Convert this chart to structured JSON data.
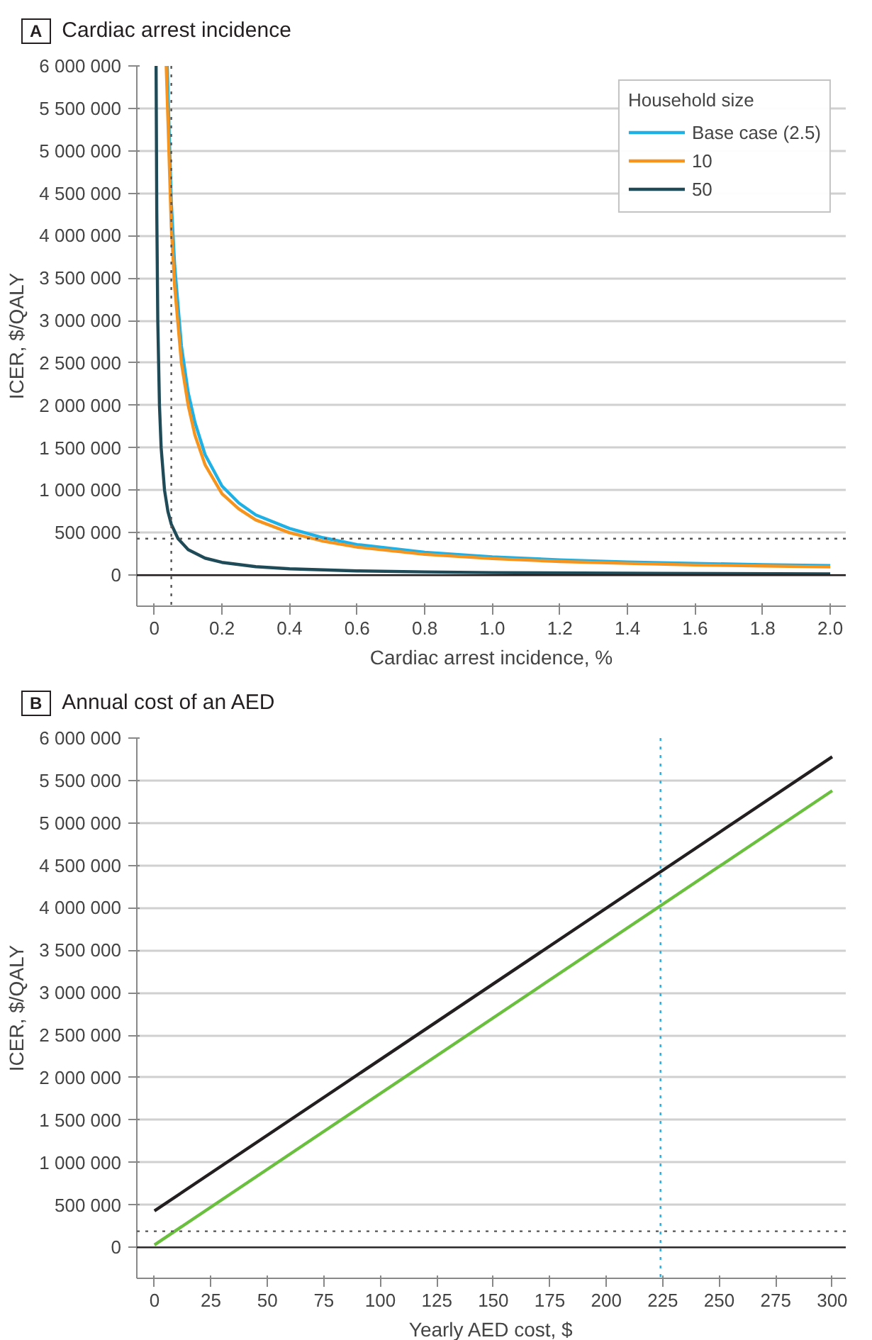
{
  "chart_data": [
    {
      "type": "line",
      "title": "Cardiac arrest incidence",
      "annotations": [
        "A"
      ],
      "xlabel": "Cardiac arrest incidence, %",
      "ylabel": "ICER, $/QALY",
      "legend_title": "Household size",
      "legend": "top right",
      "grid": "y",
      "line_style": "solid",
      "xlim": [
        -0.052,
        2.046
      ],
      "ylim": [
        -366000,
        6000000
      ],
      "xticks": [
        0,
        0.2,
        0.4,
        0.6,
        0.8,
        {
          "value": 1,
          "label": "1.0"
        },
        1.2,
        1.4,
        1.6,
        1.8,
        {
          "value": 2,
          "label": "2.0"
        }
      ],
      "yticks": [
        0,
        {
          "value": 500000,
          "label": "500 000"
        },
        {
          "value": 1000000,
          "label": "1 000 000"
        },
        {
          "value": 1500000,
          "label": "1 500 000"
        },
        {
          "value": 2000000,
          "label": "2 000 000"
        },
        {
          "value": 2500000,
          "label": "2 500 000"
        },
        {
          "value": 3000000,
          "label": "3 000 000"
        },
        {
          "value": 3500000,
          "label": "3 500 000"
        },
        {
          "value": 4000000,
          "label": "4 000 000"
        },
        {
          "value": 4500000,
          "label": "4 500 000"
        },
        {
          "value": 5000000,
          "label": "5 000 000"
        },
        {
          "value": 5500000,
          "label": "5 500 000"
        },
        {
          "value": 6000000,
          "label": "6 000 000"
        }
      ],
      "ref_lines": [
        {
          "axis": "y",
          "value": 0,
          "color": "#231f20",
          "line_style": "solid"
        },
        {
          "axis": "y",
          "value": 430000,
          "color": "#555555",
          "line_style": "dotted"
        },
        {
          "axis": "x",
          "value": 0.05,
          "color": "#555555",
          "line_style": "dotted"
        }
      ],
      "series": [
        {
          "name": "Base case (2.5)",
          "color": "#1fb0e6",
          "x": [
            0.038,
            0.05,
            0.06,
            0.08,
            0.1,
            0.12,
            0.15,
            0.2,
            0.25,
            0.3,
            0.4,
            0.5,
            0.6,
            0.8,
            1.0,
            1.2,
            1.4,
            1.6,
            1.8,
            2.0
          ],
          "values": [
            6000000,
            4400000,
            3650000,
            2700000,
            2150000,
            1800000,
            1420000,
            1050000,
            850000,
            710000,
            550000,
            440000,
            360000,
            270000,
            215000,
            180000,
            155000,
            138000,
            124000,
            113000
          ]
        },
        {
          "name": "10",
          "color": "#f7941d",
          "x": [
            0.035,
            0.05,
            0.06,
            0.08,
            0.1,
            0.12,
            0.15,
            0.2,
            0.25,
            0.3,
            0.4,
            0.5,
            0.6,
            0.8,
            1.0,
            1.2,
            1.4,
            1.6,
            1.8,
            2.0
          ],
          "values": [
            6000000,
            4100000,
            3400000,
            2500000,
            2000000,
            1650000,
            1300000,
            960000,
            780000,
            650000,
            500000,
            400000,
            330000,
            245000,
            195000,
            160000,
            138000,
            120000,
            108000,
            97000
          ]
        },
        {
          "name": "50",
          "color": "#1f4a57",
          "x": [
            0.005,
            0.007,
            0.01,
            0.015,
            0.02,
            0.03,
            0.04,
            0.05,
            0.07,
            0.1,
            0.15,
            0.2,
            0.3,
            0.4,
            0.6,
            0.8,
            1.0,
            1.5,
            2.0
          ],
          "values": [
            6000000,
            4300000,
            3000000,
            2000000,
            1500000,
            1000000,
            750000,
            600000,
            430000,
            300000,
            200000,
            150000,
            100000,
            75000,
            50000,
            38000,
            30000,
            20000,
            15000
          ]
        }
      ]
    },
    {
      "type": "line",
      "title": "Annual cost of an AED",
      "annotations": [
        "B"
      ],
      "xlabel": "Yearly AED cost, $",
      "ylabel": "ICER, $/QALY",
      "grid": "y",
      "line_style": "solid",
      "xlim": [
        -7.8,
        306
      ],
      "ylim": [
        -364000,
        6000000
      ],
      "xticks": [
        0,
        25,
        50,
        75,
        100,
        125,
        150,
        175,
        200,
        225,
        250,
        275,
        300
      ],
      "yticks": [
        0,
        {
          "value": 500000,
          "label": "500 000"
        },
        {
          "value": 1000000,
          "label": "1 000 000"
        },
        {
          "value": 1500000,
          "label": "1 500 000"
        },
        {
          "value": 2000000,
          "label": "2 000 000"
        },
        {
          "value": 2500000,
          "label": "2 500 000"
        },
        {
          "value": 3000000,
          "label": "3 000 000"
        },
        {
          "value": 3500000,
          "label": "3 500 000"
        },
        {
          "value": 4000000,
          "label": "4 000 000"
        },
        {
          "value": 4500000,
          "label": "4 500 000"
        },
        {
          "value": 5000000,
          "label": "5 000 000"
        },
        {
          "value": 5500000,
          "label": "5 500 000"
        },
        {
          "value": 6000000,
          "label": "6 000 000"
        }
      ],
      "ref_lines": [
        {
          "axis": "y",
          "value": 0,
          "color": "#231f20",
          "line_style": "solid"
        },
        {
          "axis": "y",
          "value": 190000,
          "color": "#555555",
          "line_style": "dotted"
        },
        {
          "axis": "x",
          "value": 224,
          "color": "#29abe2",
          "line_style": "dotted"
        }
      ],
      "series": [
        {
          "color": "#231f20",
          "x": [
            0,
            300
          ],
          "values": [
            430000,
            5780000
          ]
        },
        {
          "color": "#6abf3f",
          "x": [
            0,
            300
          ],
          "values": [
            30000,
            5380000
          ]
        }
      ]
    }
  ]
}
